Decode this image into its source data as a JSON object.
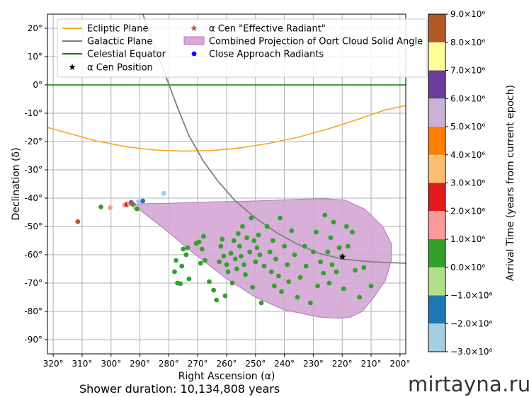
{
  "chart_data": {
    "type": "scatter",
    "xlabel": "Right Ascension (α)",
    "ylabel": "Declination (δ)",
    "xlim": [
      322,
      198
    ],
    "ylim": [
      -95,
      25
    ],
    "xticks": [
      320,
      310,
      300,
      290,
      280,
      270,
      260,
      250,
      240,
      230,
      220,
      210,
      200
    ],
    "xtick_labels": [
      "320°",
      "310°",
      "300°",
      "290°",
      "280°",
      "270°",
      "260°",
      "250°",
      "240°",
      "230°",
      "220°",
      "210°",
      "200°"
    ],
    "yticks": [
      20,
      10,
      0,
      -10,
      -20,
      -30,
      -40,
      -50,
      -60,
      -70,
      -80,
      -90
    ],
    "ytick_labels": [
      "20°",
      "10°",
      "0°",
      "-10°",
      "-20°",
      "-30°",
      "-40°",
      "-50°",
      "-60°",
      "-70°",
      "-80°",
      "-90°"
    ],
    "grid": true,
    "legend": {
      "position": "top",
      "entries": [
        {
          "label": "Ecliptic Plane",
          "kind": "line",
          "color": "#f5a623"
        },
        {
          "label": "Galactic Plane",
          "kind": "line",
          "color": "#808080"
        },
        {
          "label": "Celestial Equator",
          "kind": "line",
          "color": "#008000"
        },
        {
          "label": "α Cen Position",
          "kind": "star",
          "color": "#000000"
        },
        {
          "label": "α Cen \"Effective Radiant\"",
          "kind": "star",
          "color": "#c0504d"
        },
        {
          "label": "Combined Projection of Oort Cloud Solid Angle",
          "kind": "patch",
          "color": "#d8a9d6"
        },
        {
          "label": "Close Approach Radiants",
          "kind": "dot",
          "color": "#0000ff"
        }
      ]
    },
    "lines": {
      "ecliptic": [
        [
          322,
          -15
        ],
        [
          315,
          -17
        ],
        [
          305,
          -19.8
        ],
        [
          295,
          -21.8
        ],
        [
          285,
          -23
        ],
        [
          275,
          -23.4
        ],
        [
          265,
          -23.2
        ],
        [
          255,
          -22.2
        ],
        [
          245,
          -20.6
        ],
        [
          235,
          -18.4
        ],
        [
          225,
          -15.6
        ],
        [
          215,
          -12.3
        ],
        [
          205,
          -8.8
        ],
        [
          198,
          -7.3
        ]
      ],
      "galactic": [
        [
          289,
          25
        ],
        [
          285,
          14
        ],
        [
          281,
          3
        ],
        [
          277,
          -8
        ],
        [
          273,
          -18
        ],
        [
          268,
          -27
        ],
        [
          263,
          -34
        ],
        [
          257,
          -41
        ],
        [
          250,
          -47
        ],
        [
          243,
          -52
        ],
        [
          236,
          -56
        ],
        [
          228,
          -59.5
        ],
        [
          220,
          -61.5
        ],
        [
          210,
          -62.5
        ],
        [
          198,
          -63
        ]
      ],
      "equator": [
        [
          322,
          0
        ],
        [
          198,
          0
        ]
      ]
    },
    "oort_region": [
      [
        292,
        -42.5
      ],
      [
        290,
        -42
      ],
      [
        280,
        -41.8
      ],
      [
        265,
        -41.3
      ],
      [
        250,
        -41
      ],
      [
        240,
        -40.6
      ],
      [
        232,
        -40.3
      ],
      [
        226,
        -40.2
      ],
      [
        219,
        -40.7
      ],
      [
        212,
        -44
      ],
      [
        206,
        -50
      ],
      [
        203,
        -56
      ],
      [
        203,
        -62
      ],
      [
        205,
        -69
      ],
      [
        209,
        -75
      ],
      [
        213,
        -80
      ],
      [
        217,
        -82
      ],
      [
        221,
        -82.5
      ],
      [
        228,
        -82
      ],
      [
        240,
        -79.5
      ],
      [
        250,
        -75
      ],
      [
        260,
        -68.5
      ],
      [
        272,
        -59
      ],
      [
        282,
        -50.5
      ],
      [
        289,
        -45
      ],
      [
        292,
        -42.5
      ]
    ],
    "alpha_cen_position": {
      "ra": 219.9,
      "dec": -60.8
    },
    "alpha_cen_effective_radiant": {
      "ra": 292.8,
      "dec": -41.8
    },
    "colorbar": {
      "label": "Arrival Time (years from current epoch)",
      "bounds": [
        -3000000.0,
        -2000000.0,
        -1000000.0,
        0,
        1000000.0,
        2000000.0,
        3000000.0,
        4000000.0,
        5000000.0,
        6000000.0,
        7000000.0,
        8000000.0,
        9000000.0
      ],
      "tick_labels": [
        "−3.0×10⁶",
        "−2.0×10⁶",
        "−1.0×10⁶",
        "0.0×10⁶",
        "1.0×10⁶",
        "2.0×10⁶",
        "3.0×10⁶",
        "4.0×10⁶",
        "5.0×10⁶",
        "6.0×10⁶",
        "7.0×10⁶",
        "8.0×10⁶",
        "9.0×10⁶"
      ],
      "colors": [
        "#a6cee3",
        "#1f78b4",
        "#b2df8a",
        "#33a02c",
        "#fb9a99",
        "#e31a1c",
        "#fdbf6f",
        "#ff7f00",
        "#cab2d6",
        "#6a3d9a",
        "#ffff99",
        "#b15928"
      ]
    },
    "points": [
      {
        "ra": 311.5,
        "dec": -48.3,
        "t": 8300000.0
      },
      {
        "ra": 303.5,
        "dec": -43.1,
        "t": 400000.0
      },
      {
        "ra": 300.3,
        "dec": -43.4,
        "t": 1500000.0
      },
      {
        "ra": 295.3,
        "dec": -42.5,
        "t": 1200000.0
      },
      {
        "ra": 294.5,
        "dec": -42.2,
        "t": 2500000.0
      },
      {
        "ra": 293.7,
        "dec": -42.0,
        "t": 1500000.0
      },
      {
        "ra": 293.0,
        "dec": -41.5,
        "t": -1500000.0
      },
      {
        "ra": 292.2,
        "dec": -42.4,
        "t": 400000.0
      },
      {
        "ra": 291.6,
        "dec": -43.4,
        "t": -500000.0
      },
      {
        "ra": 291.0,
        "dec": -43.8,
        "t": 400000.0
      },
      {
        "ra": 290.5,
        "dec": -41.2,
        "t": -2500000.0
      },
      {
        "ra": 289.0,
        "dec": -41.0,
        "t": -1500000.0
      },
      {
        "ra": 281.8,
        "dec": -38.3,
        "t": -2500000.0
      },
      {
        "ra": 278.0,
        "dec": -66.0,
        "t": 400000.0
      },
      {
        "ra": 277.5,
        "dec": -62.0,
        "t": 400000.0
      },
      {
        "ra": 277.0,
        "dec": -70.0,
        "t": 400000.0
      },
      {
        "ra": 276.0,
        "dec": -70.2,
        "t": 400000.0
      },
      {
        "ra": 275.5,
        "dec": -64.0,
        "t": 400000.0
      },
      {
        "ra": 275.0,
        "dec": -58.0,
        "t": 400000.0
      },
      {
        "ra": 274.0,
        "dec": -60.0,
        "t": 400000.0
      },
      {
        "ra": 273.5,
        "dec": -57.5,
        "t": 400000.0
      },
      {
        "ra": 273.0,
        "dec": -68.5,
        "t": 400000.0
      },
      {
        "ra": 270.5,
        "dec": -56.0,
        "t": 400000.0
      },
      {
        "ra": 269.5,
        "dec": -55.5,
        "t": 400000.0
      },
      {
        "ra": 269.0,
        "dec": -63.0,
        "t": 400000.0
      },
      {
        "ra": 268.5,
        "dec": -58.0,
        "t": 400000.0
      },
      {
        "ra": 268.0,
        "dec": -53.5,
        "t": 400000.0
      },
      {
        "ra": 267.5,
        "dec": -62.0,
        "t": 400000.0
      },
      {
        "ra": 266.0,
        "dec": -69.5,
        "t": 400000.0
      },
      {
        "ra": 264.5,
        "dec": -72.5,
        "t": 400000.0
      },
      {
        "ra": 263.5,
        "dec": -76.0,
        "t": 400000.0
      },
      {
        "ra": 262.5,
        "dec": -62.5,
        "t": 400000.0
      },
      {
        "ra": 262.0,
        "dec": -57.0,
        "t": 400000.0
      },
      {
        "ra": 261.5,
        "dec": -54.5,
        "t": 400000.0
      },
      {
        "ra": 261.0,
        "dec": -60.5,
        "t": 400000.0
      },
      {
        "ra": 260.5,
        "dec": -74.5,
        "t": 400000.0
      },
      {
        "ra": 260.0,
        "dec": -63.5,
        "t": 400000.0
      },
      {
        "ra": 259.5,
        "dec": -66.0,
        "t": 400000.0
      },
      {
        "ra": 258.5,
        "dec": -59.5,
        "t": 400000.0
      },
      {
        "ra": 258.0,
        "dec": -70.0,
        "t": 400000.0
      },
      {
        "ra": 257.5,
        "dec": -55.0,
        "t": 400000.0
      },
      {
        "ra": 257.0,
        "dec": -61.5,
        "t": 400000.0
      },
      {
        "ra": 256.5,
        "dec": -65.0,
        "t": 400000.0
      },
      {
        "ra": 256.0,
        "dec": -52.5,
        "t": 400000.0
      },
      {
        "ra": 255.5,
        "dec": -57.0,
        "t": 400000.0
      },
      {
        "ra": 255.0,
        "dec": -60.5,
        "t": 400000.0
      },
      {
        "ra": 254.5,
        "dec": -50.0,
        "t": 400000.0
      },
      {
        "ra": 254.0,
        "dec": -63.5,
        "t": 400000.0
      },
      {
        "ra": 253.5,
        "dec": -67.0,
        "t": 400000.0
      },
      {
        "ra": 253.0,
        "dec": -54.0,
        "t": 400000.0
      },
      {
        "ra": 252.0,
        "dec": -59.0,
        "t": 400000.0
      },
      {
        "ra": 251.5,
        "dec": -47.0,
        "t": 400000.0
      },
      {
        "ra": 251.0,
        "dec": -71.5,
        "t": 400000.0
      },
      {
        "ra": 250.5,
        "dec": -55.0,
        "t": 400000.0
      },
      {
        "ra": 250.0,
        "dec": -62.5,
        "t": 400000.0
      },
      {
        "ra": 249.5,
        "dec": -57.5,
        "t": 400000.0
      },
      {
        "ra": 249.0,
        "dec": -53.0,
        "t": 400000.0
      },
      {
        "ra": 248.5,
        "dec": -60.0,
        "t": 400000.0
      },
      {
        "ra": 248.0,
        "dec": -77.0,
        "t": 400000.0
      },
      {
        "ra": 247.0,
        "dec": -64.0,
        "t": 400000.0
      },
      {
        "ra": 246.0,
        "dec": -50.0,
        "t": 400000.0
      },
      {
        "ra": 245.0,
        "dec": -59.0,
        "t": 400000.0
      },
      {
        "ra": 244.5,
        "dec": -66.0,
        "t": 400000.0
      },
      {
        "ra": 244.0,
        "dec": -55.0,
        "t": 400000.0
      },
      {
        "ra": 243.5,
        "dec": -71.0,
        "t": 400000.0
      },
      {
        "ra": 243.0,
        "dec": -61.5,
        "t": 400000.0
      },
      {
        "ra": 242.0,
        "dec": -67.5,
        "t": 400000.0
      },
      {
        "ra": 241.5,
        "dec": -47.0,
        "t": 400000.0
      },
      {
        "ra": 241.0,
        "dec": -73.0,
        "t": 400000.0
      },
      {
        "ra": 240.0,
        "dec": -57.0,
        "t": 400000.0
      },
      {
        "ra": 239.0,
        "dec": -63.5,
        "t": 400000.0
      },
      {
        "ra": 238.5,
        "dec": -69.5,
        "t": 400000.0
      },
      {
        "ra": 237.5,
        "dec": -51.5,
        "t": 400000.0
      },
      {
        "ra": 236.5,
        "dec": -60.0,
        "t": 400000.0
      },
      {
        "ra": 235.5,
        "dec": -75.0,
        "t": 400000.0
      },
      {
        "ra": 234.5,
        "dec": -68.0,
        "t": 400000.0
      },
      {
        "ra": 233.0,
        "dec": -57.0,
        "t": 400000.0
      },
      {
        "ra": 232.5,
        "dec": -64.0,
        "t": 400000.0
      },
      {
        "ra": 231.0,
        "dec": -77.0,
        "t": 400000.0
      },
      {
        "ra": 230.0,
        "dec": -59.0,
        "t": 400000.0
      },
      {
        "ra": 229.0,
        "dec": -52.0,
        "t": 400000.0
      },
      {
        "ra": 228.5,
        "dec": -71.0,
        "t": 400000.0
      },
      {
        "ra": 227.5,
        "dec": -62.5,
        "t": 400000.0
      },
      {
        "ra": 226.5,
        "dec": -66.5,
        "t": 400000.0
      },
      {
        "ra": 226.0,
        "dec": -46.0,
        "t": 400000.0
      },
      {
        "ra": 225.0,
        "dec": -59.0,
        "t": 400000.0
      },
      {
        "ra": 224.5,
        "dec": -70.0,
        "t": 400000.0
      },
      {
        "ra": 224.0,
        "dec": -54.0,
        "t": 400000.0
      },
      {
        "ra": 223.5,
        "dec": -63.5,
        "t": 400000.0
      },
      {
        "ra": 223.0,
        "dec": -48.5,
        "t": 400000.0
      },
      {
        "ra": 222.0,
        "dec": -66.0,
        "t": 400000.0
      },
      {
        "ra": 221.0,
        "dec": -57.5,
        "t": 400000.0
      },
      {
        "ra": 220.0,
        "dec": -60.5,
        "t": 400000.0
      },
      {
        "ra": 219.5,
        "dec": -72.0,
        "t": 400000.0
      },
      {
        "ra": 218.5,
        "dec": -50.0,
        "t": 400000.0
      },
      {
        "ra": 218.0,
        "dec": -57.0,
        "t": 400000.0
      },
      {
        "ra": 216.5,
        "dec": -52.0,
        "t": 400000.0
      },
      {
        "ra": 215.5,
        "dec": -65.5,
        "t": 400000.0
      },
      {
        "ra": 214.0,
        "dec": -75.0,
        "t": 400000.0
      },
      {
        "ra": 212.5,
        "dec": -64.5,
        "t": 400000.0
      },
      {
        "ra": 210.0,
        "dec": -71.0,
        "t": 400000.0
      }
    ]
  },
  "caption": "Shower duration: 10,134,808 years",
  "watermark": "mirtayna.ru"
}
